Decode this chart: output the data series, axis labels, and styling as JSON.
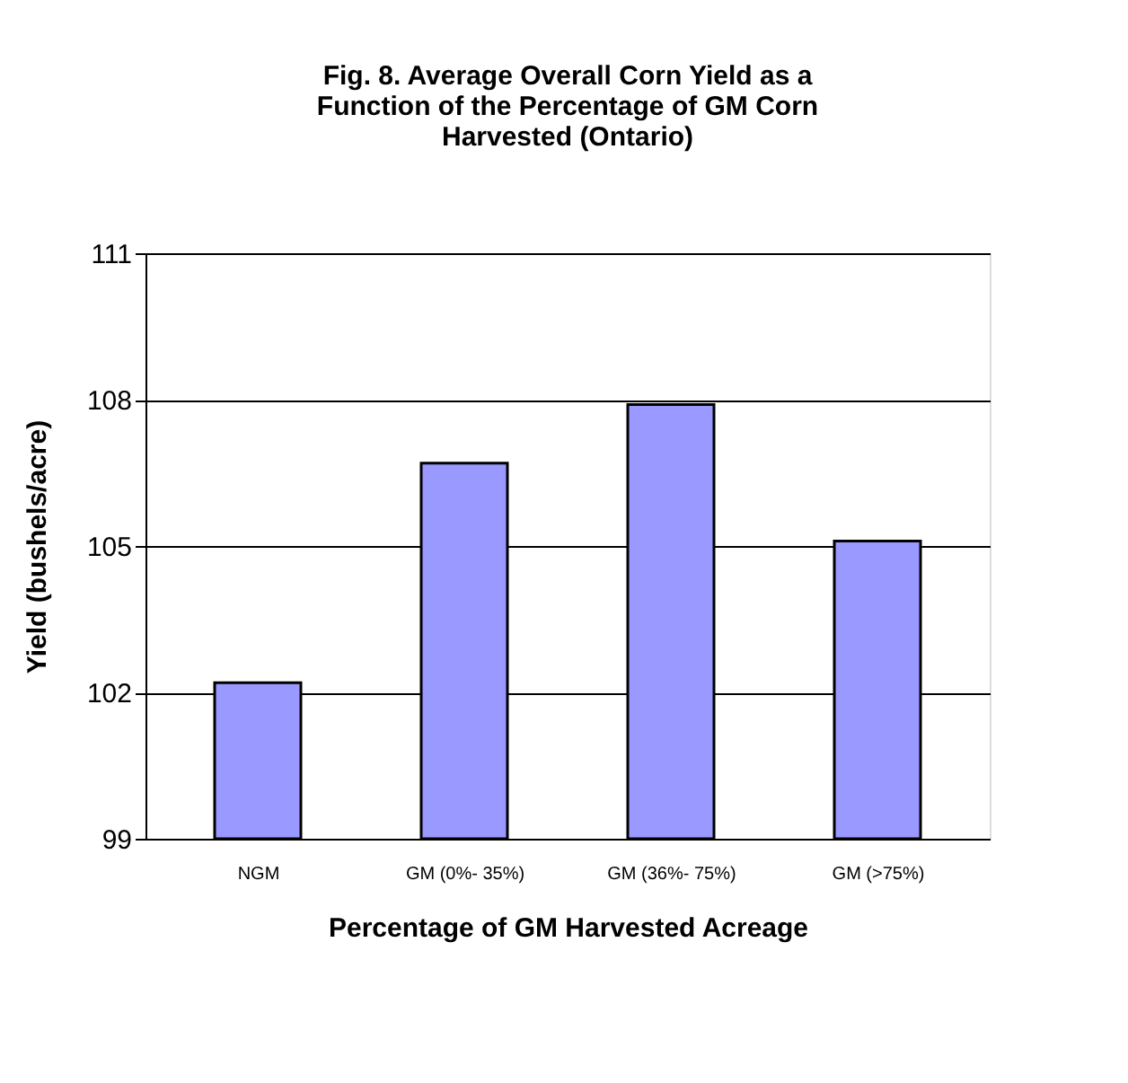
{
  "chart_data": {
    "type": "bar",
    "title": "Fig. 8. Average Overall Corn Yield as a Function of the Percentage of GM Corn Harvested (Ontario)",
    "xlabel": "Percentage of GM Harvested Acreage",
    "ylabel": "Yield (bushels/acre)",
    "categories": [
      "NGM",
      "GM (0%- 35%)",
      "GM (36%- 75%)",
      "GM (>75%)"
    ],
    "values": [
      102.2,
      106.7,
      107.9,
      105.1
    ],
    "color": "#9999ff",
    "ylim": [
      99,
      111
    ],
    "yticks": [
      99,
      102,
      105,
      108,
      111
    ],
    "grid": "y"
  }
}
